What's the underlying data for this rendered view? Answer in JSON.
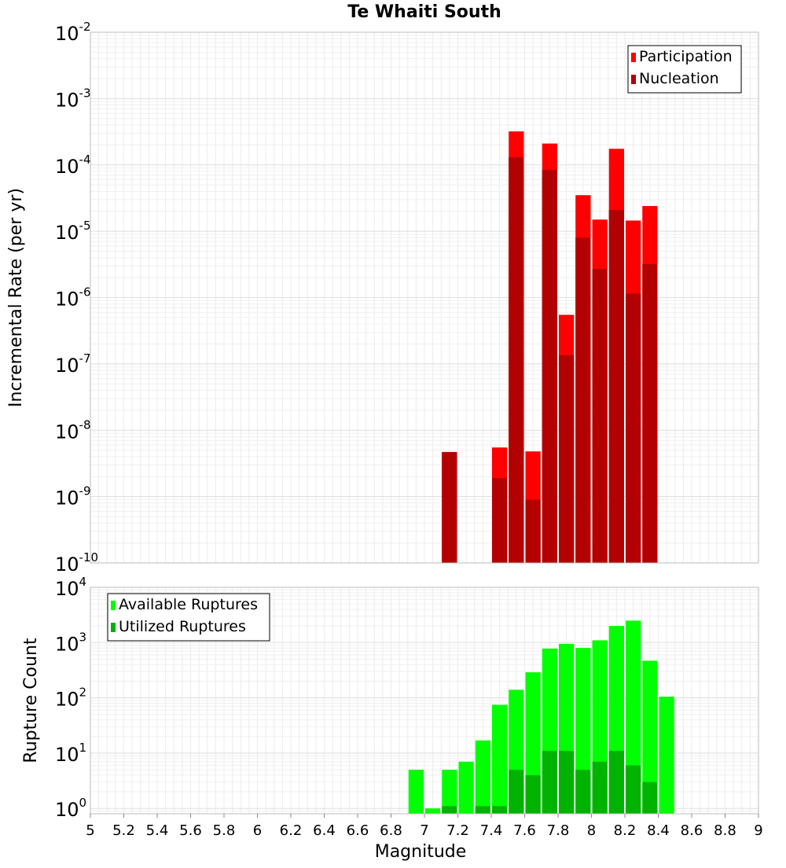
{
  "chart_data": [
    {
      "type": "bar",
      "title": "Te Whaiti South",
      "xlabel": "",
      "ylabel": "Incremental Rate (per yr)",
      "yscale": "log",
      "ylim": [
        1e-10,
        0.01
      ],
      "xlim": [
        5,
        9
      ],
      "grid": true,
      "legend_position": "top-right",
      "bar_width": 0.1,
      "y_tick_labels": [
        {
          "base": "10",
          "exp": "-10"
        },
        {
          "base": "10",
          "exp": "-9"
        },
        {
          "base": "10",
          "exp": "-8"
        },
        {
          "base": "10",
          "exp": "-7"
        },
        {
          "base": "10",
          "exp": "-6"
        },
        {
          "base": "10",
          "exp": "-5"
        },
        {
          "base": "10",
          "exp": "-4"
        },
        {
          "base": "10",
          "exp": "-3"
        },
        {
          "base": "10",
          "exp": "-2"
        }
      ],
      "series": [
        {
          "name": "Participation",
          "color": "#ff0000",
          "points": [
            {
              "x": 7.15,
              "y": 4.7e-09
            },
            {
              "x": 7.45,
              "y": 5.5e-09
            },
            {
              "x": 7.55,
              "y": 0.00032
            },
            {
              "x": 7.65,
              "y": 4.8e-09
            },
            {
              "x": 7.75,
              "y": 0.00021
            },
            {
              "x": 7.85,
              "y": 5.5e-07
            },
            {
              "x": 7.95,
              "y": 3.5e-05
            },
            {
              "x": 8.05,
              "y": 1.5e-05
            },
            {
              "x": 8.15,
              "y": 0.000175
            },
            {
              "x": 8.25,
              "y": 1.45e-05
            },
            {
              "x": 8.35,
              "y": 2.4e-05
            }
          ]
        },
        {
          "name": "Nucleation",
          "color": "#b30000",
          "points": [
            {
              "x": 7.15,
              "y": 4.7e-09
            },
            {
              "x": 7.45,
              "y": 1.9e-09
            },
            {
              "x": 7.55,
              "y": 0.00013
            },
            {
              "x": 7.65,
              "y": 9e-10
            },
            {
              "x": 7.75,
              "y": 8.4e-05
            },
            {
              "x": 7.85,
              "y": 1.35e-07
            },
            {
              "x": 7.95,
              "y": 8e-06
            },
            {
              "x": 8.05,
              "y": 2.7e-06
            },
            {
              "x": 8.15,
              "y": 2.1e-05
            },
            {
              "x": 8.25,
              "y": 1.15e-06
            },
            {
              "x": 8.35,
              "y": 3.2e-06
            }
          ]
        }
      ]
    },
    {
      "type": "bar",
      "title": "",
      "xlabel": "Magnitude",
      "ylabel": "Rupture Count",
      "yscale": "log",
      "ylim": [
        0.8,
        10000
      ],
      "xlim": [
        5,
        9
      ],
      "grid": true,
      "legend_position": "top-left",
      "bar_width": 0.1,
      "x_ticks": [
        "5",
        "5.2",
        "5.4",
        "5.6",
        "5.8",
        "6",
        "6.2",
        "6.4",
        "6.6",
        "6.8",
        "7",
        "7.2",
        "7.4",
        "7.6",
        "7.8",
        "8",
        "8.2",
        "8.4",
        "8.6",
        "8.8",
        "9"
      ],
      "y_tick_labels": [
        {
          "base": "10",
          "exp": "0"
        },
        {
          "base": "10",
          "exp": "1"
        },
        {
          "base": "10",
          "exp": "2"
        },
        {
          "base": "10",
          "exp": "3"
        },
        {
          "base": "10",
          "exp": "4"
        }
      ],
      "series": [
        {
          "name": "Available Ruptures",
          "color": "#00ff00",
          "points": [
            {
              "x": 6.95,
              "y": 5
            },
            {
              "x": 7.05,
              "y": 1
            },
            {
              "x": 7.15,
              "y": 5
            },
            {
              "x": 7.25,
              "y": 7
            },
            {
              "x": 7.35,
              "y": 17
            },
            {
              "x": 7.45,
              "y": 75
            },
            {
              "x": 7.55,
              "y": 140
            },
            {
              "x": 7.65,
              "y": 290
            },
            {
              "x": 7.75,
              "y": 780
            },
            {
              "x": 7.85,
              "y": 950
            },
            {
              "x": 7.95,
              "y": 800
            },
            {
              "x": 8.05,
              "y": 1100
            },
            {
              "x": 8.15,
              "y": 2000
            },
            {
              "x": 8.25,
              "y": 2500
            },
            {
              "x": 8.35,
              "y": 470
            },
            {
              "x": 8.45,
              "y": 105
            }
          ]
        },
        {
          "name": "Utilized Ruptures",
          "color": "#00b300",
          "points": [
            {
              "x": 7.15,
              "y": 1.1
            },
            {
              "x": 7.35,
              "y": 1.1
            },
            {
              "x": 7.45,
              "y": 1.1
            },
            {
              "x": 7.55,
              "y": 5
            },
            {
              "x": 7.65,
              "y": 4
            },
            {
              "x": 7.75,
              "y": 11
            },
            {
              "x": 7.85,
              "y": 11
            },
            {
              "x": 7.95,
              "y": 5
            },
            {
              "x": 8.05,
              "y": 7
            },
            {
              "x": 8.15,
              "y": 11
            },
            {
              "x": 8.25,
              "y": 6
            },
            {
              "x": 8.35,
              "y": 3
            }
          ]
        }
      ]
    }
  ]
}
